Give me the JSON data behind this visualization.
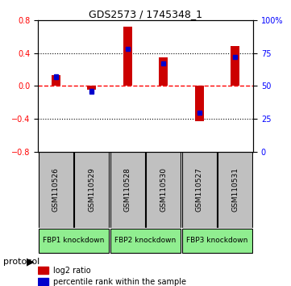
{
  "title": "GDS2573 / 1745348_1",
  "samples": [
    "GSM110526",
    "GSM110529",
    "GSM110528",
    "GSM110530",
    "GSM110527",
    "GSM110531"
  ],
  "log2_ratio": [
    0.13,
    -0.04,
    0.72,
    0.35,
    -0.43,
    0.48
  ],
  "percentile_rank": [
    57,
    46,
    78,
    67,
    30,
    72
  ],
  "groups": [
    {
      "label": "FBP1 knockdown",
      "samples": [
        0,
        1
      ],
      "color": "#90EE90"
    },
    {
      "label": "FBP2 knockdown",
      "samples": [
        2,
        3
      ],
      "color": "#90EE90"
    },
    {
      "label": "FBP3 knockdown",
      "samples": [
        4,
        5
      ],
      "color": "#90EE90"
    }
  ],
  "ylim_left": [
    -0.8,
    0.8
  ],
  "ylim_right": [
    0,
    100
  ],
  "yticks_left": [
    -0.8,
    -0.4,
    0.0,
    0.4,
    0.8
  ],
  "yticks_right": [
    0,
    25,
    50,
    75,
    100
  ],
  "bar_color_red": "#CC0000",
  "bar_color_blue": "#0000CC",
  "bg_color": "#FFFFFF",
  "plot_bg": "#FFFFFF",
  "grid_color": "#000000",
  "sample_box_color": "#C0C0C0",
  "zero_line_color": "#FF0000",
  "bar_width": 0.25
}
